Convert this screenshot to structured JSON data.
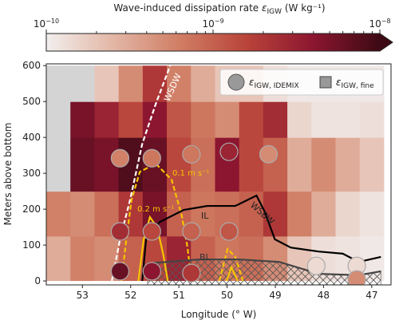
{
  "chart_data": {
    "type": "heatmap",
    "colorbar": {
      "label": {
        "prefix": "Wave-induced dissipation rate ",
        "symbol": "ε",
        "subscript": "IGW",
        "unit": " (W kg⁻¹)"
      },
      "clim": [
        1e-10,
        1e-08
      ],
      "log": true,
      "ticks": [
        {
          "value": 1e-10,
          "label": "10",
          "exponent": "−10"
        },
        {
          "value": 1e-09,
          "label": "10",
          "exponent": "−9"
        },
        {
          "value": 1e-08,
          "label": "10",
          "exponent": "−8"
        }
      ],
      "minor_ticks": [
        2e-10,
        3e-10,
        4e-10,
        5e-10,
        6e-10,
        7e-10,
        8e-10,
        9e-10,
        2e-09,
        3e-09,
        4e-09,
        5e-09,
        6e-09,
        7e-09,
        8e-09,
        9e-09
      ],
      "colormap": [
        "#f2eeed",
        "#e3b7a6",
        "#d07e64",
        "#b9443a",
        "#8c1630",
        "#3d0a14"
      ],
      "nan_color": "#d4d4d4"
    },
    "xlabel": "Longitude (° W)",
    "ylabel": "Meters above bottom",
    "xlim": [
      53.75,
      46.6
    ],
    "ylim": [
      -11,
      605
    ],
    "xticks": [
      53,
      52,
      51,
      50,
      49,
      48,
      47
    ],
    "yticks": [
      0,
      100,
      200,
      300,
      400,
      500,
      600
    ],
    "x_edges": [
      53.75,
      53.25,
      52.75,
      52.25,
      51.75,
      51.25,
      50.75,
      50.25,
      49.75,
      49.25,
      48.75,
      48.25,
      47.75,
      47.25,
      46.75
    ],
    "y_edges": [
      0,
      125,
      250,
      400,
      500,
      600
    ],
    "z": [
      [
        3e-10,
        6e-10,
        5e-10,
        1e-09,
        1.5e-09,
        3e-09,
        1e-09,
        7e-10,
        8e-10,
        5e-10,
        2e-10,
        1.3e-10,
        1.2e-10,
        1.1e-10
      ],
      [
        6e-10,
        5e-10,
        8e-10,
        2e-09,
        5e-09,
        1e-09,
        7e-10,
        8e-10,
        1e-09,
        2e-09,
        6e-10,
        3e-10,
        1.5e-10,
        1.2e-10
      ],
      [
        null,
        6e-09,
        5e-09,
        8e-09,
        6e-09,
        1.5e-09,
        8e-10,
        4e-09,
        1.5e-09,
        1e-09,
        3e-10,
        5e-10,
        3e-10,
        2e-10
      ],
      [
        null,
        5e-09,
        3e-09,
        1.5e-09,
        4e-09,
        1.2e-09,
        7e-10,
        5e-10,
        1.5e-09,
        2.5e-09,
        1.5e-10,
        1.2e-10,
        1.2e-10,
        1.3e-10
      ],
      [
        null,
        null,
        2e-10,
        5e-10,
        2e-09,
        6e-10,
        3e-10,
        2e-10,
        2e-10,
        1.3e-10,
        1.1e-10,
        1.1e-10,
        1.1e-10,
        1.1e-10
      ]
    ],
    "points": {
      "lon": [
        52.22,
        51.56,
        50.74,
        49.96,
        49.14,
        52.22,
        51.56,
        50.74,
        49.96,
        52.22,
        51.56,
        50.74,
        48.15,
        47.31,
        47.31
      ],
      "depth": [
        342,
        342,
        353,
        360,
        353,
        138,
        138,
        138,
        138,
        27,
        27,
        22,
        42,
        42,
        4
      ],
      "values": [
        6e-10,
        7e-10,
        7e-10,
        3e-09,
        5e-10,
        2.5e-09,
        1.5e-09,
        1e-09,
        1.2e-09,
        6e-09,
        4e-09,
        2e-09,
        1.4e-10,
        1.4e-10,
        5e-10
      ]
    },
    "legend": [
      {
        "symbol": "ε",
        "subscript": "IGW, IDEMIX"
      },
      {
        "symbol": "ε",
        "subscript": "IGW, fine"
      }
    ],
    "lines": [
      {
        "name": "WSDW",
        "color": "#ffffff",
        "dash": true,
        "x": [
          52.39,
          52.22,
          52.01,
          51.76,
          51.48,
          51.18
        ],
        "y": [
          0,
          116,
          227,
          382,
          493,
          600
        ]
      },
      {
        "name": "0.1 m s⁻¹",
        "color": "#f5c400",
        "dash": true,
        "x": [
          52.19,
          52.09,
          51.98,
          51.81,
          51.48,
          51.15,
          50.94,
          50.82,
          50.74,
          null,
          50.16,
          49.99,
          49.83,
          49.67
        ],
        "y": [
          0,
          116,
          227,
          304,
          327,
          282,
          182,
          93,
          0,
          null,
          0,
          89,
          67,
          0
        ]
      },
      {
        "name": "0.2 m s⁻¹",
        "color": "#f5c400",
        "dash": false,
        "x": [
          51.84,
          51.73,
          51.6,
          51.45,
          51.32,
          51.23,
          null,
          50.01,
          49.91,
          49.78
        ],
        "y": [
          0,
          116,
          178,
          149,
          71,
          0,
          null,
          0,
          38,
          0
        ]
      },
      {
        "name": "WSBW",
        "color": "#000000",
        "dash": false,
        "x": [
          51.76,
          51.68,
          51.4,
          50.9,
          50.41,
          49.83,
          49.39,
          49.22,
          49.01,
          48.68,
          48.1,
          47.6,
          47.27,
          46.81
        ],
        "y": [
          0,
          116,
          164,
          198,
          209,
          209,
          238,
          193,
          116,
          93,
          82,
          76,
          53,
          67
        ]
      },
      {
        "name": "BL",
        "color": "#444444",
        "dash": false,
        "x": [
          51.65,
          50.57,
          49.75,
          48.92,
          48.1,
          47.27,
          46.81
        ],
        "y": [
          49,
          60,
          60,
          53,
          20,
          16,
          27
        ]
      }
    ],
    "annotations": [
      "WSDW",
      "0.1 m s⁻¹",
      "0.2 m s⁻¹",
      "IL",
      "WSBW",
      "BL"
    ]
  }
}
